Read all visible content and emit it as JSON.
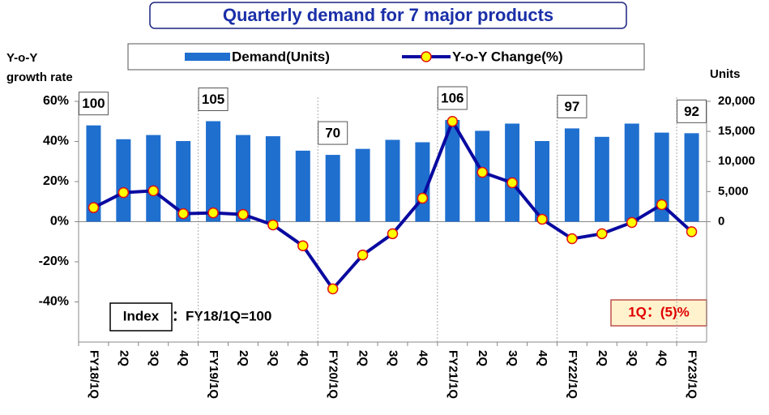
{
  "chart_data": {
    "type": "bar_line",
    "title": "Quarterly demand for 7 major products",
    "ylabel": [
      "Y-o-Y",
      "growth rate"
    ],
    "y2label": "Units",
    "categories": [
      "FY18/1Q",
      "2Q",
      "3Q",
      "4Q",
      "FY19/1Q",
      "2Q",
      "3Q",
      "4Q",
      "FY20/1Q",
      "2Q",
      "3Q",
      "4Q",
      "FY21/1Q",
      "2Q",
      "3Q",
      "4Q",
      "FY22/1Q",
      "2Q",
      "3Q",
      "4Q",
      "FY23/1Q"
    ],
    "series": [
      {
        "name": "Demand(Units)",
        "type": "bar",
        "axis": "y2",
        "color": "#1f6fcf",
        "values": [
          16000,
          13700,
          14400,
          13400,
          16700,
          14400,
          14200,
          11800,
          11100,
          12100,
          13600,
          13200,
          16900,
          15100,
          16300,
          13400,
          15500,
          14100,
          16300,
          14800,
          14700
        ],
        "index_labels": [
          100,
          null,
          null,
          null,
          105,
          null,
          null,
          null,
          70,
          null,
          null,
          null,
          106,
          null,
          null,
          null,
          97,
          null,
          null,
          null,
          92
        ]
      },
      {
        "name": "Y-o-Y Change(%)",
        "type": "line",
        "axis": "y",
        "color": "#0a0aa0",
        "marker_color": "#ffff00",
        "marker_edge": "#e01010",
        "values": [
          7,
          14.5,
          15.4,
          4,
          4.4,
          3.6,
          -1.6,
          -12,
          -33.5,
          -16.6,
          -6,
          11.7,
          50,
          24.6,
          19.4,
          1.2,
          -8.5,
          -6,
          -0.4,
          8.5,
          -5
        ]
      }
    ],
    "ylim": [
      -60,
      60
    ],
    "yticks": [
      {
        "value": -40,
        "label": "-40%"
      },
      {
        "value": -20,
        "label": "-20%"
      },
      {
        "value": 0,
        "label": "0%"
      },
      {
        "value": 20,
        "label": "20%"
      },
      {
        "value": 40,
        "label": "40%"
      },
      {
        "value": 60,
        "label": "60%"
      }
    ],
    "y2lim": [
      -20000,
      20000
    ],
    "y2ticks": [
      0,
      {
        "value": 5000,
        "label": "5,000"
      },
      {
        "value": 10000,
        "label": "10,000"
      },
      {
        "value": 15000,
        "label": "15,000"
      },
      {
        "value": 20000,
        "label": "20,000"
      }
    ],
    "annotations": {
      "index_box": "Index",
      "index_text": "：FY18/1Q=100",
      "latest": "1Q：(5)%"
    }
  }
}
